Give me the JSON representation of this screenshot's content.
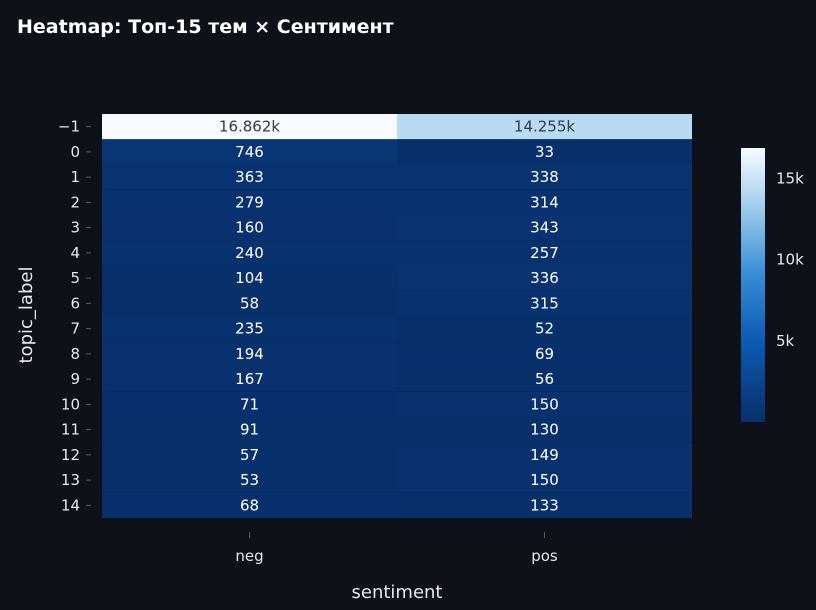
{
  "chart_data": {
    "type": "heatmap",
    "title": "Heatmap: Топ-15 тем × Сентимент",
    "xlabel": "sentiment",
    "ylabel": "topic_label",
    "x": [
      "neg",
      "pos"
    ],
    "y": [
      "−1",
      "0",
      "1",
      "2",
      "3",
      "4",
      "5",
      "6",
      "7",
      "8",
      "9",
      "10",
      "11",
      "12",
      "13",
      "14"
    ],
    "values": [
      [
        16862,
        14255
      ],
      [
        746,
        33
      ],
      [
        363,
        338
      ],
      [
        279,
        314
      ],
      [
        160,
        343
      ],
      [
        240,
        257
      ],
      [
        104,
        336
      ],
      [
        58,
        315
      ],
      [
        235,
        52
      ],
      [
        194,
        69
      ],
      [
        167,
        56
      ],
      [
        71,
        150
      ],
      [
        91,
        130
      ],
      [
        57,
        149
      ],
      [
        53,
        150
      ],
      [
        68,
        133
      ]
    ],
    "cell_labels": [
      [
        "16.862k",
        "14.255k"
      ],
      [
        "746",
        "33"
      ],
      [
        "363",
        "338"
      ],
      [
        "279",
        "314"
      ],
      [
        "160",
        "343"
      ],
      [
        "240",
        "257"
      ],
      [
        "104",
        "336"
      ],
      [
        "58",
        "315"
      ],
      [
        "235",
        "52"
      ],
      [
        "194",
        "69"
      ],
      [
        "167",
        "56"
      ],
      [
        "71",
        "150"
      ],
      [
        "91",
        "130"
      ],
      [
        "57",
        "149"
      ],
      [
        "53",
        "150"
      ],
      [
        "68",
        "133"
      ]
    ],
    "colorscale": "Blues",
    "colorbar": {
      "min": 33,
      "max": 16862,
      "ticks": [
        5000,
        10000,
        15000
      ],
      "tick_labels": [
        "5k",
        "10k",
        "15k"
      ]
    },
    "grid": false,
    "legend": "right"
  },
  "colors": {
    "background": "#0e1117",
    "text": "#e6e8ee",
    "scale_low": "#08306b",
    "scale_high": "#f7fbff"
  }
}
